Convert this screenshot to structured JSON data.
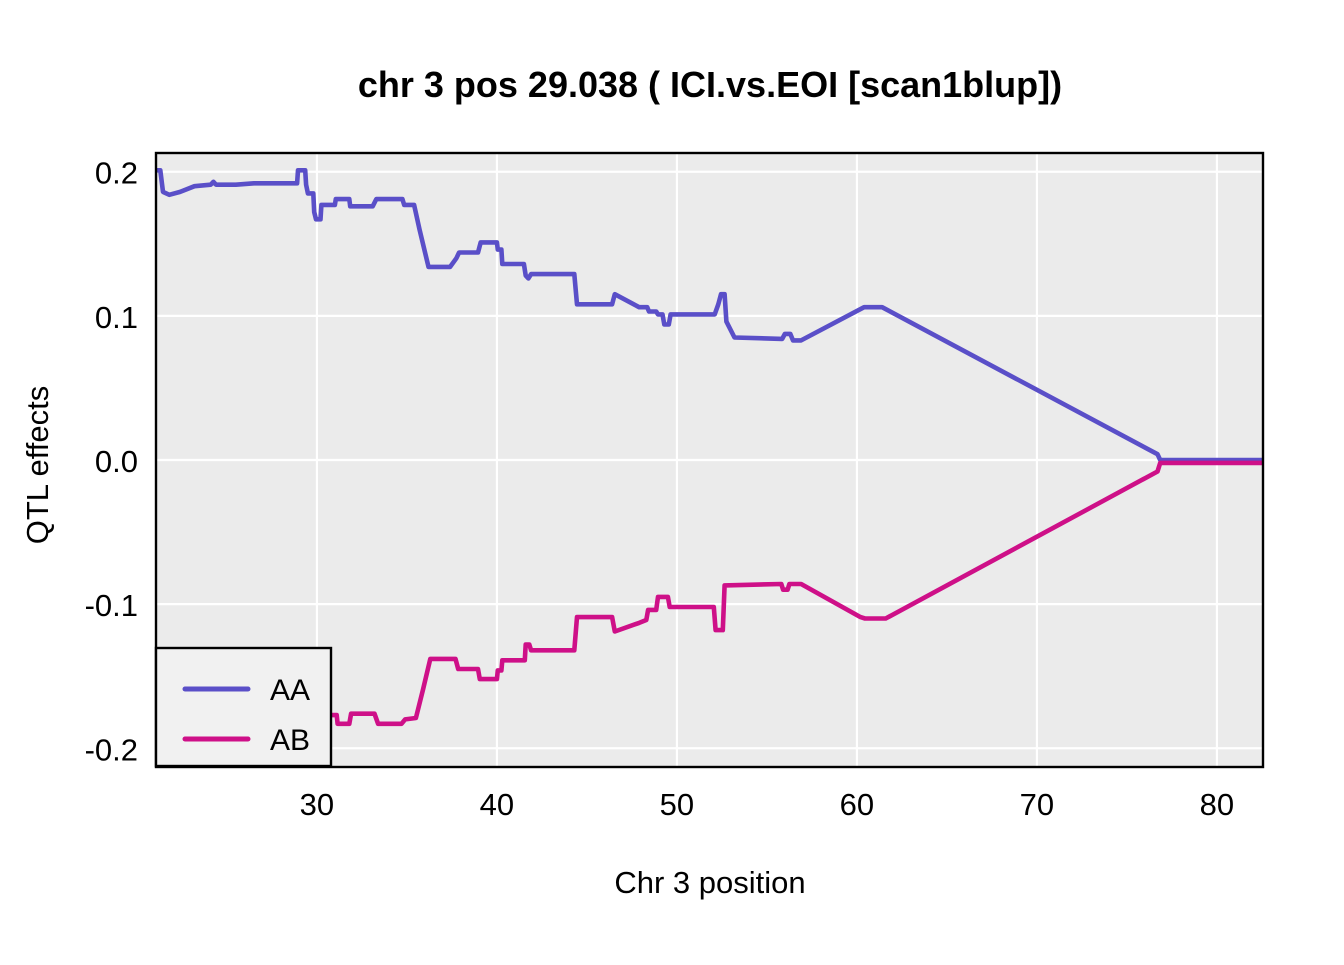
{
  "title": "chr 3 pos 29.038 ( ICI.vs.EOI  [scan1blup])",
  "axes": {
    "x_label": "Chr 3 position",
    "y_label": "QTL effects",
    "x_tick_labels": [
      "30",
      "40",
      "50",
      "60",
      "70",
      "80"
    ],
    "y_tick_labels": [
      "0.2",
      "0.1",
      "0.0",
      "-0.1",
      "-0.2"
    ]
  },
  "legend": {
    "items": [
      {
        "label": "AA",
        "color": "#5A4FC8"
      },
      {
        "label": "AB",
        "color": "#CE1088"
      }
    ]
  },
  "colors": {
    "panel_background": "#EBEBEB",
    "grid": "#FFFFFF",
    "panel_border": "#000000",
    "legend_background": "#F1F1F1",
    "page_background": "#FFFFFF",
    "text": "#000000"
  },
  "chart_data": {
    "type": "line",
    "title": "chr 3 pos 29.038 ( ICI.vs.EOI  [scan1blup])",
    "xlabel": "Chr 3 position",
    "ylabel": "QTL effects",
    "xlim": [
      21.06,
      82.56
    ],
    "ylim": [
      -0.213,
      0.213
    ],
    "x_ticks": [
      30,
      40,
      50,
      60,
      70,
      80
    ],
    "y_ticks": [
      0.2,
      0.1,
      0.0,
      -0.1,
      -0.2
    ],
    "grid": true,
    "legend_position": "bottom-left",
    "series": [
      {
        "name": "AA",
        "color": "#5A4FC8",
        "points": [
          [
            21.06,
            0.201
          ],
          [
            21.3,
            0.201
          ],
          [
            21.45,
            0.186
          ],
          [
            21.8,
            0.184
          ],
          [
            22.4,
            0.186
          ],
          [
            23.2,
            0.19
          ],
          [
            24.1,
            0.191
          ],
          [
            24.25,
            0.193
          ],
          [
            24.4,
            0.191
          ],
          [
            25.5,
            0.191
          ],
          [
            26.5,
            0.192
          ],
          [
            28.9,
            0.192
          ],
          [
            28.95,
            0.201
          ],
          [
            29.35,
            0.201
          ],
          [
            29.4,
            0.191
          ],
          [
            29.5,
            0.185
          ],
          [
            29.8,
            0.185
          ],
          [
            29.85,
            0.172
          ],
          [
            29.95,
            0.167
          ],
          [
            30.2,
            0.167
          ],
          [
            30.25,
            0.177
          ],
          [
            31.0,
            0.177
          ],
          [
            31.05,
            0.181
          ],
          [
            31.8,
            0.181
          ],
          [
            31.85,
            0.176
          ],
          [
            33.1,
            0.176
          ],
          [
            33.3,
            0.181
          ],
          [
            34.75,
            0.181
          ],
          [
            34.85,
            0.177
          ],
          [
            35.4,
            0.177
          ],
          [
            35.7,
            0.16
          ],
          [
            36.2,
            0.134
          ],
          [
            37.4,
            0.134
          ],
          [
            37.75,
            0.14
          ],
          [
            37.9,
            0.144
          ],
          [
            38.95,
            0.144
          ],
          [
            39.1,
            0.151
          ],
          [
            40.0,
            0.151
          ],
          [
            40.05,
            0.146
          ],
          [
            40.25,
            0.146
          ],
          [
            40.3,
            0.136
          ],
          [
            41.5,
            0.136
          ],
          [
            41.6,
            0.128
          ],
          [
            41.75,
            0.126
          ],
          [
            41.9,
            0.129
          ],
          [
            44.3,
            0.129
          ],
          [
            44.45,
            0.108
          ],
          [
            46.4,
            0.108
          ],
          [
            46.55,
            0.115
          ],
          [
            47.9,
            0.106
          ],
          [
            48.35,
            0.106
          ],
          [
            48.45,
            0.103
          ],
          [
            48.85,
            0.103
          ],
          [
            48.95,
            0.101
          ],
          [
            49.2,
            0.101
          ],
          [
            49.3,
            0.094
          ],
          [
            49.55,
            0.094
          ],
          [
            49.65,
            0.101
          ],
          [
            52.1,
            0.101
          ],
          [
            52.3,
            0.108
          ],
          [
            52.45,
            0.115
          ],
          [
            52.65,
            0.115
          ],
          [
            52.75,
            0.096
          ],
          [
            53.2,
            0.085
          ],
          [
            55.85,
            0.084
          ],
          [
            56.0,
            0.0875
          ],
          [
            56.3,
            0.0875
          ],
          [
            56.45,
            0.083
          ],
          [
            56.9,
            0.083
          ],
          [
            60.4,
            0.106
          ],
          [
            61.4,
            0.106
          ],
          [
            76.7,
            0.004
          ],
          [
            76.85,
            0.0
          ],
          [
            82.56,
            0.0
          ]
        ]
      },
      {
        "name": "AB",
        "color": "#CE1088",
        "points": [
          [
            21.06,
            -0.201
          ],
          [
            21.3,
            -0.201
          ],
          [
            21.45,
            -0.186
          ],
          [
            21.8,
            -0.184
          ],
          [
            22.4,
            -0.186
          ],
          [
            23.2,
            -0.19
          ],
          [
            25.5,
            -0.191
          ],
          [
            28.9,
            -0.192
          ],
          [
            28.95,
            -0.199
          ],
          [
            29.35,
            -0.199
          ],
          [
            29.5,
            -0.185
          ],
          [
            29.85,
            -0.173
          ],
          [
            30.2,
            -0.17
          ],
          [
            30.3,
            -0.177
          ],
          [
            31.1,
            -0.177
          ],
          [
            31.15,
            -0.183
          ],
          [
            31.8,
            -0.183
          ],
          [
            31.9,
            -0.176
          ],
          [
            33.2,
            -0.176
          ],
          [
            33.4,
            -0.183
          ],
          [
            34.7,
            -0.183
          ],
          [
            34.9,
            -0.18
          ],
          [
            35.5,
            -0.179
          ],
          [
            35.9,
            -0.159
          ],
          [
            36.3,
            -0.138
          ],
          [
            37.7,
            -0.138
          ],
          [
            37.85,
            -0.145
          ],
          [
            38.95,
            -0.145
          ],
          [
            39.05,
            -0.152
          ],
          [
            40.0,
            -0.152
          ],
          [
            40.05,
            -0.146
          ],
          [
            40.25,
            -0.146
          ],
          [
            40.3,
            -0.139
          ],
          [
            41.55,
            -0.139
          ],
          [
            41.6,
            -0.128
          ],
          [
            41.8,
            -0.128
          ],
          [
            41.9,
            -0.132
          ],
          [
            44.3,
            -0.132
          ],
          [
            44.45,
            -0.109
          ],
          [
            46.4,
            -0.109
          ],
          [
            46.55,
            -0.119
          ],
          [
            47.9,
            -0.113
          ],
          [
            48.3,
            -0.111
          ],
          [
            48.4,
            -0.104
          ],
          [
            48.85,
            -0.104
          ],
          [
            48.95,
            -0.095
          ],
          [
            49.5,
            -0.095
          ],
          [
            49.6,
            -0.102
          ],
          [
            52.05,
            -0.102
          ],
          [
            52.15,
            -0.118
          ],
          [
            52.55,
            -0.118
          ],
          [
            52.65,
            -0.087
          ],
          [
            55.8,
            -0.086
          ],
          [
            55.9,
            -0.09
          ],
          [
            56.15,
            -0.09
          ],
          [
            56.25,
            -0.086
          ],
          [
            56.9,
            -0.086
          ],
          [
            60.2,
            -0.109
          ],
          [
            60.45,
            -0.11
          ],
          [
            61.6,
            -0.11
          ],
          [
            76.7,
            -0.008
          ],
          [
            76.85,
            -0.002
          ],
          [
            82.56,
            -0.002
          ]
        ]
      }
    ]
  }
}
